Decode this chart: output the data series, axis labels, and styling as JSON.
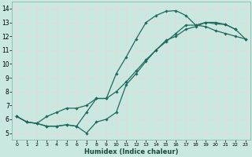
{
  "title": "",
  "xlabel": "Humidex (Indice chaleur)",
  "bg_color": "#c8e8e0",
  "grid_color": "#b0d8d0",
  "line_color": "#1e6b5e",
  "xlim": [
    -0.5,
    23.5
  ],
  "ylim": [
    4.5,
    14.5
  ],
  "xticks": [
    0,
    1,
    2,
    3,
    4,
    5,
    6,
    7,
    8,
    9,
    10,
    11,
    12,
    13,
    14,
    15,
    16,
    17,
    18,
    19,
    20,
    21,
    22,
    23
  ],
  "yticks": [
    5,
    6,
    7,
    8,
    9,
    10,
    11,
    12,
    13,
    14
  ],
  "curve1_x": [
    0,
    1,
    2,
    3,
    4,
    5,
    6,
    7,
    8,
    9,
    10,
    11,
    12,
    13,
    14,
    15,
    16,
    17,
    18,
    19,
    20,
    21,
    22
  ],
  "curve1_y": [
    6.2,
    5.8,
    5.7,
    5.5,
    5.5,
    5.6,
    5.5,
    6.5,
    7.5,
    7.5,
    9.3,
    10.5,
    11.8,
    13.0,
    13.5,
    13.8,
    13.85,
    13.5,
    12.8,
    13.0,
    12.9,
    12.85,
    12.5
  ],
  "curve2_x": [
    0,
    1,
    2,
    3,
    4,
    5,
    6,
    7,
    8,
    9,
    10,
    11,
    12,
    13,
    14,
    15,
    16,
    17,
    18,
    19,
    20,
    21,
    22,
    23
  ],
  "curve2_y": [
    6.2,
    5.8,
    5.7,
    5.5,
    5.5,
    5.6,
    5.5,
    5.0,
    5.8,
    6.0,
    6.5,
    8.5,
    9.3,
    10.2,
    11.0,
    11.7,
    12.0,
    12.5,
    12.7,
    13.0,
    13.0,
    12.85,
    12.5,
    11.8
  ],
  "curve3_x": [
    0,
    1,
    2,
    3,
    4,
    5,
    6,
    7,
    8,
    9,
    10,
    11,
    12,
    13,
    14,
    15,
    16,
    17,
    18,
    19,
    20,
    21,
    22,
    23
  ],
  "curve3_y": [
    6.2,
    5.8,
    5.7,
    6.2,
    6.5,
    6.8,
    6.8,
    7.0,
    7.5,
    7.5,
    8.0,
    8.7,
    9.5,
    10.3,
    11.0,
    11.6,
    12.2,
    12.8,
    12.8,
    12.7,
    12.4,
    12.2,
    12.0,
    11.8
  ]
}
